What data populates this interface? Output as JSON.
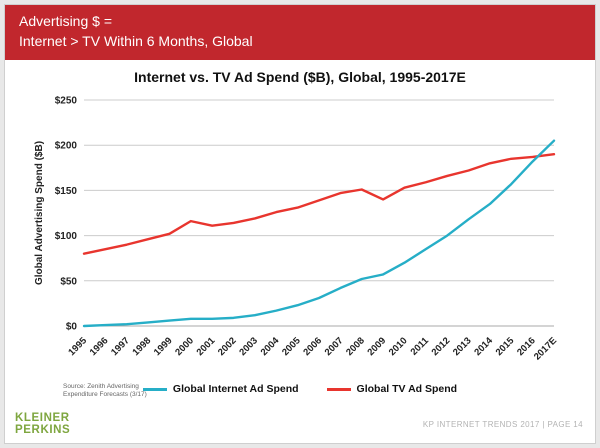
{
  "header": {
    "line1": "Advertising $ =",
    "line2": "Internet > TV Within 6 Months, Global"
  },
  "chart_data": {
    "type": "line",
    "title": "Internet vs. TV Ad Spend ($B), Global, 1995-2017E",
    "ylabel": "Global Advertising Spend ($B)",
    "xlabel": "",
    "ylim": [
      0,
      250
    ],
    "yticks": [
      "$0",
      "$50",
      "$100",
      "$150",
      "$200",
      "$250"
    ],
    "grid": true,
    "legend_position": "bottom",
    "categories": [
      "1995",
      "1996",
      "1997",
      "1998",
      "1999",
      "2000",
      "2001",
      "2002",
      "2003",
      "2004",
      "2005",
      "2006",
      "2007",
      "2008",
      "2009",
      "2010",
      "2011",
      "2012",
      "2013",
      "2014",
      "2015",
      "2016",
      "2017E"
    ],
    "series": [
      {
        "name": "Global Internet Ad Spend",
        "color": "#26AEC7",
        "values": [
          0,
          1,
          2,
          4,
          6,
          8,
          8,
          9,
          12,
          17,
          23,
          31,
          42,
          52,
          57,
          70,
          85,
          100,
          118,
          135,
          157,
          182,
          205
        ]
      },
      {
        "name": "Global TV Ad Spend",
        "color": "#E8352E",
        "values": [
          80,
          85,
          90,
          96,
          102,
          116,
          111,
          114,
          119,
          126,
          131,
          139,
          147,
          151,
          140,
          153,
          159,
          166,
          172,
          180,
          185,
          187,
          190
        ]
      }
    ]
  },
  "source": "Source: Zenith Advertising Expenditure Forecasts (3/17)",
  "footer": {
    "logo_line1": "KLEINER",
    "logo_line2": "PERKINS",
    "credit": "KP INTERNET TRENDS 2017 | PAGE 14"
  },
  "colors": {
    "header_bg": "#C1272D",
    "internet_line": "#26AEC7",
    "tv_line": "#E8352E",
    "logo_green": "#7EA63F",
    "gridline": "#cccccc"
  }
}
